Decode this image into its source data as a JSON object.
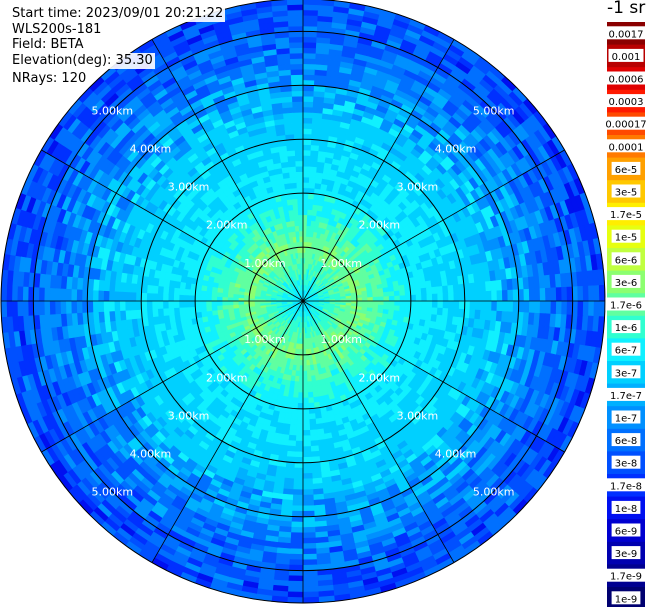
{
  "info": {
    "start_time": "Start time: 2023/09/01 20:21:22",
    "instrument": "WLS200s-181",
    "field": "Field: BETA",
    "elevation": "Elevation(deg): 35.30",
    "nrays": "NRays: 120"
  },
  "colorbar": {
    "unit": "-1 sr",
    "ticks": [
      "0.0017",
      "0.001",
      "0.0006",
      "0.0003",
      "0.00017",
      "0.0001",
      "6e-5",
      "3e-5",
      "1.7e-5",
      "1e-5",
      "6e-6",
      "3e-6",
      "1.7e-6",
      "1e-6",
      "6e-7",
      "3e-7",
      "1.7e-7",
      "1e-7",
      "6e-8",
      "3e-8",
      "1.7e-8",
      "1e-8",
      "6e-9",
      "3e-9",
      "1.7e-9",
      "1e-9"
    ],
    "colors": [
      "#8a0000",
      "#b80000",
      "#e00000",
      "#ff1a00",
      "#ff4a00",
      "#ff7a00",
      "#ffa000",
      "#ffc800",
      "#ffee00",
      "#e6ff10",
      "#c0ff40",
      "#8cff70",
      "#60ffa0",
      "#30ffd0",
      "#10f0ff",
      "#00d0ff",
      "#00b0ff",
      "#0090ff",
      "#0070ff",
      "#0050ff",
      "#0030ff",
      "#0010f0",
      "#0000d0",
      "#0000b0",
      "#000090",
      "#000070"
    ]
  },
  "chart_data": {
    "type": "heatmap",
    "projection": "polar (PPI scan)",
    "field": "BETA",
    "elevation_deg": 35.3,
    "n_rays": 120,
    "range_rings_km": [
      1,
      2,
      3,
      4,
      5
    ],
    "max_range_km": 5.6,
    "ring_labels": {
      "r1": "1.00km",
      "r2": "2.00km",
      "r3": "3.00km",
      "r4": "4.00km",
      "r5": "5.00km"
    },
    "spoke_angles_deg": [
      0,
      30,
      60,
      90,
      120,
      150,
      180,
      210,
      240,
      270,
      300,
      330
    ],
    "range_profile": [
      {
        "range_km": 0.0,
        "beta": 3e-07
      },
      {
        "range_km": 0.5,
        "beta": 8e-07
      },
      {
        "range_km": 1.0,
        "beta": 1.7e-06
      },
      {
        "range_km": 1.5,
        "beta": 8e-07
      },
      {
        "range_km": 2.0,
        "beta": 4e-07
      },
      {
        "range_km": 2.5,
        "beta": 3e-07
      },
      {
        "range_km": 3.0,
        "beta": 2.5e-07
      },
      {
        "range_km": 3.5,
        "beta": 2e-07
      },
      {
        "range_km": 4.0,
        "beta": 1e-07
      },
      {
        "range_km": 4.5,
        "beta": 5e-08
      },
      {
        "range_km": 5.0,
        "beta": 3e-08
      },
      {
        "range_km": 5.6,
        "beta": 2e-08
      }
    ]
  }
}
